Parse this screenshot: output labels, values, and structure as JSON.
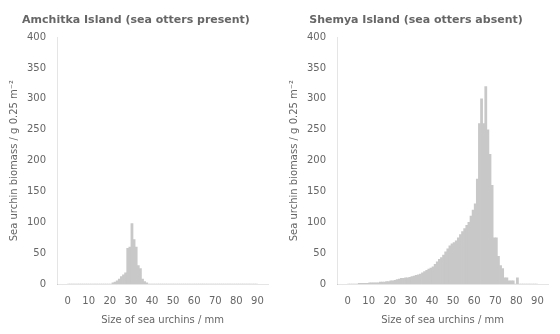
{
  "chart_data": [
    {
      "type": "histogram",
      "title": "Amchitka Island (sea otters present)",
      "xlabel": "Size of sea urchins / mm",
      "ylabel": "Sea urchin biomass / g 0.25 m⁻²",
      "color": "#c8c8c8",
      "bins": [
        0,
        1,
        2,
        3,
        4,
        5,
        6,
        7,
        8,
        9,
        10,
        11,
        12,
        13,
        14,
        15,
        16,
        17,
        18,
        19,
        20,
        21,
        22,
        23,
        24,
        25,
        26,
        27,
        28,
        29,
        30,
        31,
        32,
        33,
        34,
        35,
        36,
        37,
        38,
        39,
        40,
        41,
        42,
        43,
        44,
        45,
        46,
        47,
        48,
        49,
        50,
        51,
        52,
        53,
        54,
        55,
        56,
        57,
        58,
        59,
        60,
        61,
        62,
        63,
        64,
        65,
        66,
        67,
        68,
        69,
        70,
        71,
        72,
        73,
        74,
        75,
        76,
        77,
        78,
        79,
        80,
        81,
        82,
        83,
        84,
        85,
        86,
        87,
        88,
        89,
        90
      ],
      "values": [
        0,
        0,
        0,
        0,
        0,
        0,
        0,
        0,
        0,
        0,
        0,
        0,
        0,
        0,
        0,
        0,
        0,
        0,
        0,
        0,
        0,
        2,
        3,
        5,
        8,
        12,
        15,
        18,
        58,
        60,
        98,
        72,
        60,
        30,
        25,
        8,
        4,
        2,
        0,
        0,
        0,
        0,
        0,
        0,
        0,
        0,
        0,
        0,
        0,
        0,
        0,
        0,
        0,
        0,
        0,
        0,
        0,
        0,
        0,
        0,
        0,
        0,
        0,
        0,
        0,
        0,
        0,
        0,
        0,
        0,
        0,
        0,
        0,
        0,
        0,
        0,
        0,
        0,
        0,
        0,
        0,
        0,
        0,
        0,
        0,
        0,
        0,
        0,
        0,
        0
      ],
      "xlim": [
        0,
        90
      ],
      "xticks": [
        0,
        10,
        20,
        30,
        40,
        50,
        60,
        70,
        80,
        90
      ],
      "ylim": [
        0,
        400
      ],
      "yticks": [
        0,
        50,
        100,
        150,
        200,
        250,
        300,
        350,
        400
      ],
      "grid": false
    },
    {
      "type": "histogram",
      "title": "Shemya Island (sea otters absent)",
      "xlabel": "Size of sea urchins / mm",
      "ylabel": "Sea urchin biomass / g 0.25 m⁻²",
      "color": "#c8c8c8",
      "bins": [
        0,
        1,
        2,
        3,
        4,
        5,
        6,
        7,
        8,
        9,
        10,
        11,
        12,
        13,
        14,
        15,
        16,
        17,
        18,
        19,
        20,
        21,
        22,
        23,
        24,
        25,
        26,
        27,
        28,
        29,
        30,
        31,
        32,
        33,
        34,
        35,
        36,
        37,
        38,
        39,
        40,
        41,
        42,
        43,
        44,
        45,
        46,
        47,
        48,
        49,
        50,
        51,
        52,
        53,
        54,
        55,
        56,
        57,
        58,
        59,
        60,
        61,
        62,
        63,
        64,
        65,
        66,
        67,
        68,
        69,
        70,
        71,
        72,
        73,
        74,
        75,
        76,
        77,
        78,
        79,
        80,
        81,
        82,
        83,
        84,
        85,
        86,
        87,
        88,
        89,
        90
      ],
      "values": [
        0,
        0,
        0,
        0,
        0,
        1,
        1,
        1,
        1,
        1,
        2,
        2,
        2,
        2,
        2,
        3,
        3,
        3,
        4,
        4,
        5,
        5,
        6,
        7,
        8,
        9,
        9,
        10,
        10,
        11,
        12,
        13,
        14,
        15,
        16,
        18,
        20,
        22,
        24,
        26,
        28,
        32,
        36,
        40,
        43,
        47,
        52,
        57,
        62,
        65,
        67,
        70,
        75,
        80,
        85,
        90,
        95,
        100,
        110,
        120,
        130,
        170,
        260,
        300,
        260,
        320,
        250,
        210,
        160,
        75,
        75,
        45,
        30,
        25,
        10,
        10,
        5,
        5,
        5,
        0,
        10,
        0,
        0,
        0,
        0,
        0,
        0,
        0,
        0,
        0
      ],
      "xlim": [
        0,
        90
      ],
      "xticks": [
        0,
        10,
        20,
        30,
        40,
        50,
        60,
        70,
        80,
        90
      ],
      "ylim": [
        0,
        400
      ],
      "yticks": [
        0,
        50,
        100,
        150,
        200,
        250,
        300,
        350,
        400
      ],
      "grid": false
    }
  ]
}
